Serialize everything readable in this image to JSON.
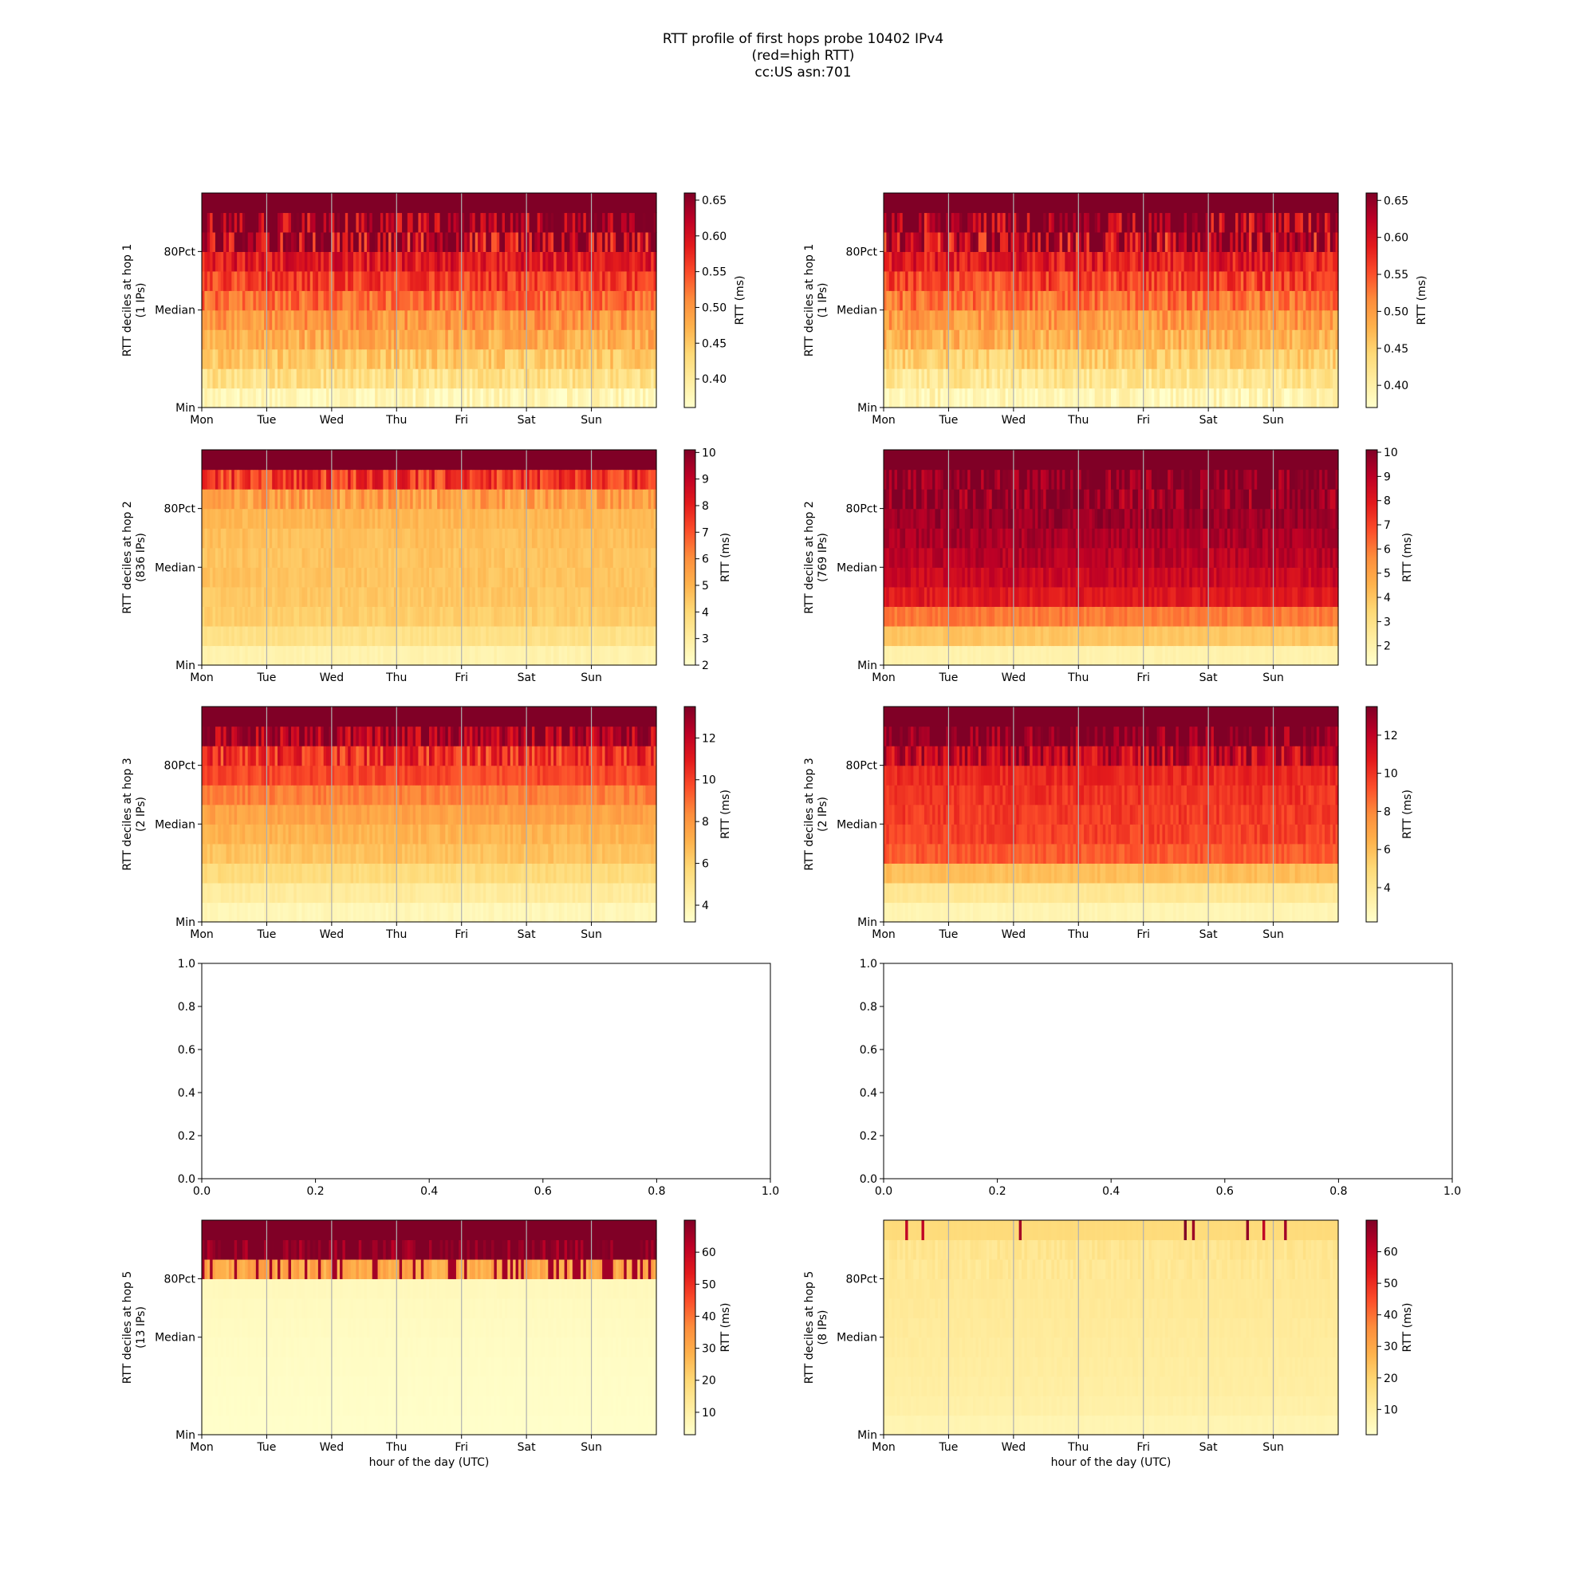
{
  "figure": {
    "title_lines": [
      "RTT profile of first hops probe 10402 IPv4",
      "(red=high RTT)",
      "cc:US asn:701"
    ]
  },
  "chart_data": [
    {
      "type": "heatmap",
      "panel": "hop1-left",
      "ylabel_lines": [
        "RTT deciles at hop 1",
        "(1 IPs)"
      ],
      "x_ticks": [
        "Mon",
        "Tue",
        "Wed",
        "Thu",
        "Fri",
        "Sat",
        "Sun"
      ],
      "y_ticks": [
        "Min",
        "Median",
        "80Pct"
      ],
      "xlabel": "",
      "colorbar": {
        "label": "RTT (ms)",
        "min": 0.36,
        "max": 0.66,
        "ticks": [
          0.4,
          0.45,
          0.5,
          0.55,
          0.6,
          0.65
        ],
        "tick_labels": [
          "0.40",
          "0.45",
          "0.50",
          "0.55",
          "0.60",
          "0.65"
        ]
      },
      "decile_rtt_ms": [
        0.38,
        0.42,
        0.45,
        0.48,
        0.5,
        0.53,
        0.56,
        0.59,
        0.63,
        0.66,
        0.68
      ]
    },
    {
      "type": "heatmap",
      "panel": "hop1-right",
      "ylabel_lines": [
        "RTT deciles at hop 1",
        "(1 IPs)"
      ],
      "x_ticks": [
        "Mon",
        "Tue",
        "Wed",
        "Thu",
        "Fri",
        "Sat",
        "Sun"
      ],
      "y_ticks": [
        "Min",
        "Median",
        "80Pct"
      ],
      "xlabel": "",
      "colorbar": {
        "label": "RTT (ms)",
        "min": 0.37,
        "max": 0.66,
        "ticks": [
          0.4,
          0.45,
          0.5,
          0.55,
          0.6,
          0.65
        ],
        "tick_labels": [
          "0.40",
          "0.45",
          "0.50",
          "0.55",
          "0.60",
          "0.65"
        ]
      },
      "decile_rtt_ms": [
        0.39,
        0.42,
        0.45,
        0.48,
        0.5,
        0.53,
        0.56,
        0.59,
        0.63,
        0.66,
        0.68
      ]
    },
    {
      "type": "heatmap",
      "panel": "hop2-left",
      "ylabel_lines": [
        "RTT deciles at hop 2",
        "(836 IPs)"
      ],
      "x_ticks": [
        "Mon",
        "Tue",
        "Wed",
        "Thu",
        "Fri",
        "Sat",
        "Sun"
      ],
      "y_ticks": [
        "Min",
        "Median",
        "80Pct"
      ],
      "xlabel": "",
      "colorbar": {
        "label": "RTT (ms)",
        "min": 2,
        "max": 10.1,
        "ticks": [
          2,
          3,
          4,
          5,
          6,
          7,
          8,
          9,
          10
        ],
        "tick_labels": [
          "2",
          "3",
          "4",
          "5",
          "6",
          "7",
          "8",
          "9",
          "10"
        ]
      },
      "decile_rtt_ms": [
        2.7,
        3.6,
        4.3,
        4.5,
        4.6,
        4.6,
        4.7,
        4.9,
        5.5,
        7.5,
        11
      ]
    },
    {
      "type": "heatmap",
      "panel": "hop2-right",
      "ylabel_lines": [
        "RTT deciles at hop 2",
        "(769 IPs)"
      ],
      "x_ticks": [
        "Mon",
        "Tue",
        "Wed",
        "Thu",
        "Fri",
        "Sat",
        "Sun"
      ],
      "y_ticks": [
        "Min",
        "Median",
        "80Pct"
      ],
      "xlabel": "",
      "colorbar": {
        "label": "RTT (ms)",
        "min": 1.2,
        "max": 10.1,
        "ticks": [
          2,
          3,
          4,
          5,
          6,
          7,
          8,
          9,
          10
        ],
        "tick_labels": [
          "2",
          "3",
          "4",
          "5",
          "6",
          "7",
          "8",
          "9",
          "10"
        ]
      },
      "decile_rtt_ms": [
        2.0,
        4.0,
        6.0,
        8.0,
        8.6,
        9.0,
        9.3,
        9.6,
        9.9,
        10.2,
        11
      ]
    },
    {
      "type": "heatmap",
      "panel": "hop3-left",
      "ylabel_lines": [
        "RTT deciles at hop 3",
        "(2 IPs)"
      ],
      "x_ticks": [
        "Mon",
        "Tue",
        "Wed",
        "Thu",
        "Fri",
        "Sat",
        "Sun"
      ],
      "y_ticks": [
        "Min",
        "Median",
        "80Pct"
      ],
      "xlabel": "",
      "colorbar": {
        "label": "RTT (ms)",
        "min": 3.2,
        "max": 13.5,
        "ticks": [
          4,
          6,
          8,
          10,
          12
        ],
        "tick_labels": [
          "4",
          "6",
          "8",
          "10",
          "12"
        ]
      },
      "decile_rtt_ms": [
        3.8,
        4.6,
        5.6,
        6.5,
        7.0,
        7.6,
        8.6,
        9.8,
        10.4,
        12.5,
        14
      ]
    },
    {
      "type": "heatmap",
      "panel": "hop3-right",
      "ylabel_lines": [
        "RTT deciles at hop 3",
        "(2 IPs)"
      ],
      "x_ticks": [
        "Mon",
        "Tue",
        "Wed",
        "Thu",
        "Fri",
        "Sat",
        "Sun"
      ],
      "y_ticks": [
        "Min",
        "Median",
        "80Pct"
      ],
      "xlabel": "",
      "colorbar": {
        "label": "RTT (ms)",
        "min": 2.2,
        "max": 13.5,
        "ticks": [
          4,
          6,
          8,
          10,
          12
        ],
        "tick_labels": [
          "4",
          "6",
          "8",
          "10",
          "12"
        ]
      },
      "decile_rtt_ms": [
        3.0,
        4.0,
        6.0,
        9.0,
        9.6,
        9.8,
        10.0,
        10.3,
        11.8,
        13.4,
        14
      ]
    },
    {
      "type": "empty",
      "panel": "hop4-left",
      "x_ticks": [
        "0.0",
        "0.2",
        "0.4",
        "0.6",
        "0.8",
        "1.0"
      ],
      "y_ticks": [
        "0.0",
        "0.2",
        "0.4",
        "0.6",
        "0.8",
        "1.0"
      ],
      "xlim": [
        0,
        1
      ],
      "ylim": [
        0,
        1
      ]
    },
    {
      "type": "empty",
      "panel": "hop4-right",
      "x_ticks": [
        "0.0",
        "0.2",
        "0.4",
        "0.6",
        "0.8",
        "1.0"
      ],
      "y_ticks": [
        "0.0",
        "0.2",
        "0.4",
        "0.6",
        "0.8",
        "1.0"
      ],
      "xlim": [
        0,
        1
      ],
      "ylim": [
        0,
        1
      ]
    },
    {
      "type": "heatmap",
      "panel": "hop5-left",
      "ylabel_lines": [
        "RTT deciles at hop 5",
        "(13 IPs)"
      ],
      "x_ticks": [
        "Mon",
        "Tue",
        "Wed",
        "Thu",
        "Fri",
        "Sat",
        "Sun"
      ],
      "y_ticks": [
        "Min",
        "Median",
        "80Pct"
      ],
      "xlabel": "hour of the day (UTC)",
      "colorbar": {
        "label": "RTT (ms)",
        "min": 3,
        "max": 70,
        "ticks": [
          10,
          20,
          30,
          40,
          50,
          60
        ],
        "tick_labels": [
          "10",
          "20",
          "30",
          "40",
          "50",
          "60"
        ]
      },
      "decile_rtt_ms": [
        3.5,
        3.8,
        4.0,
        4.3,
        4.6,
        5.0,
        5.4,
        6.0,
        30,
        72,
        75
      ]
    },
    {
      "type": "heatmap",
      "panel": "hop5-right",
      "ylabel_lines": [
        "RTT deciles at hop 5",
        "(8 IPs)"
      ],
      "x_ticks": [
        "Mon",
        "Tue",
        "Wed",
        "Thu",
        "Fri",
        "Sat",
        "Sun"
      ],
      "y_ticks": [
        "Min",
        "Median",
        "80Pct"
      ],
      "xlabel": "hour of the day (UTC)",
      "colorbar": {
        "label": "RTT (ms)",
        "min": 2,
        "max": 70,
        "ticks": [
          10,
          20,
          30,
          40,
          50,
          60
        ],
        "tick_labels": [
          "10",
          "20",
          "30",
          "40",
          "50",
          "60"
        ]
      },
      "decile_rtt_ms": [
        7,
        9,
        10,
        10.5,
        11,
        11.5,
        12,
        12.5,
        13,
        14,
        18
      ]
    }
  ]
}
